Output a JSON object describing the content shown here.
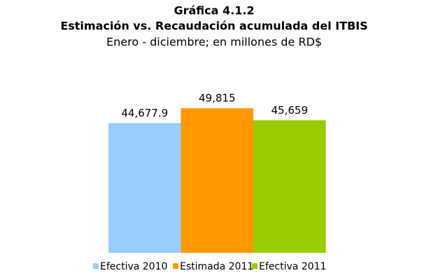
{
  "chart_data": {
    "type": "bar",
    "title": "Gráfica 4.1.2",
    "subtitle_bold": "Estimación vs. Recaudación acumulada del ITBIS",
    "subtitle": "Enero - diciembre; en millones de RD$",
    "categories": [
      "Efectiva 2010",
      "Estimada 2011",
      "Efectiva 2011"
    ],
    "values": [
      44677.9,
      49815,
      45659
    ],
    "value_labels": [
      "44,677.9",
      "49,815",
      "45,659"
    ],
    "colors": [
      "#99ccff",
      "#ff9900",
      "#99cc00"
    ]
  }
}
